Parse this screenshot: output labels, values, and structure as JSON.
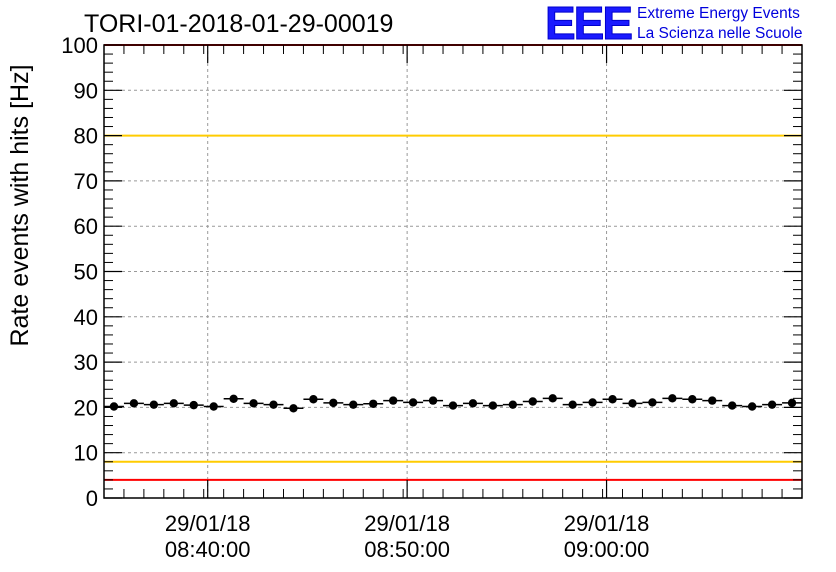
{
  "title": "TORI-01-2018-01-29-00019",
  "logo": {
    "mark": "EEE",
    "line1": "Extreme Energy Events",
    "line2": "La Scienza nelle Scuole",
    "color": "#0000dd"
  },
  "chart_data": {
    "type": "scatter",
    "ylabel": "Rate events with hits [Hz]",
    "xlabel": "",
    "ylim": [
      0,
      100
    ],
    "yticks": [
      0,
      10,
      20,
      30,
      40,
      50,
      60,
      70,
      80,
      90,
      100
    ],
    "xlim_minutes": [
      0,
      35
    ],
    "xticks": [
      {
        "minute": 5.2,
        "date": "29/01/18",
        "time": "08:40:00"
      },
      {
        "minute": 15.2,
        "date": "29/01/18",
        "time": "08:50:00"
      },
      {
        "minute": 25.2,
        "date": "29/01/18",
        "time": "09:00:00"
      }
    ],
    "grid": true,
    "reference_lines": [
      {
        "y": 100,
        "color": "#ff0000"
      },
      {
        "y": 80,
        "color": "#ffcc00"
      },
      {
        "y": 8,
        "color": "#ffcc00"
      },
      {
        "y": 4,
        "color": "#ff0000"
      }
    ],
    "series": [
      {
        "name": "rate",
        "marker_color": "#000000",
        "bin_width_minutes": 1,
        "x": [
          0.5,
          1.5,
          2.5,
          3.5,
          4.5,
          5.5,
          6.5,
          7.5,
          8.5,
          9.5,
          10.5,
          11.5,
          12.5,
          13.5,
          14.5,
          15.5,
          16.5,
          17.5,
          18.5,
          19.5,
          20.5,
          21.5,
          22.5,
          23.5,
          24.5,
          25.5,
          26.5,
          27.5,
          28.5,
          29.5,
          30.5,
          31.5,
          32.5,
          33.5,
          34.5
        ],
        "values": [
          20.2,
          20.9,
          20.6,
          20.9,
          20.5,
          20.2,
          21.9,
          20.9,
          20.6,
          19.8,
          21.8,
          21.0,
          20.6,
          20.8,
          21.5,
          21.1,
          21.5,
          20.4,
          20.9,
          20.4,
          20.6,
          21.3,
          22.0,
          20.6,
          21.1,
          21.8,
          20.9,
          21.1,
          22.0,
          21.8,
          21.5,
          20.4,
          20.2,
          20.6,
          21.0
        ]
      }
    ]
  }
}
